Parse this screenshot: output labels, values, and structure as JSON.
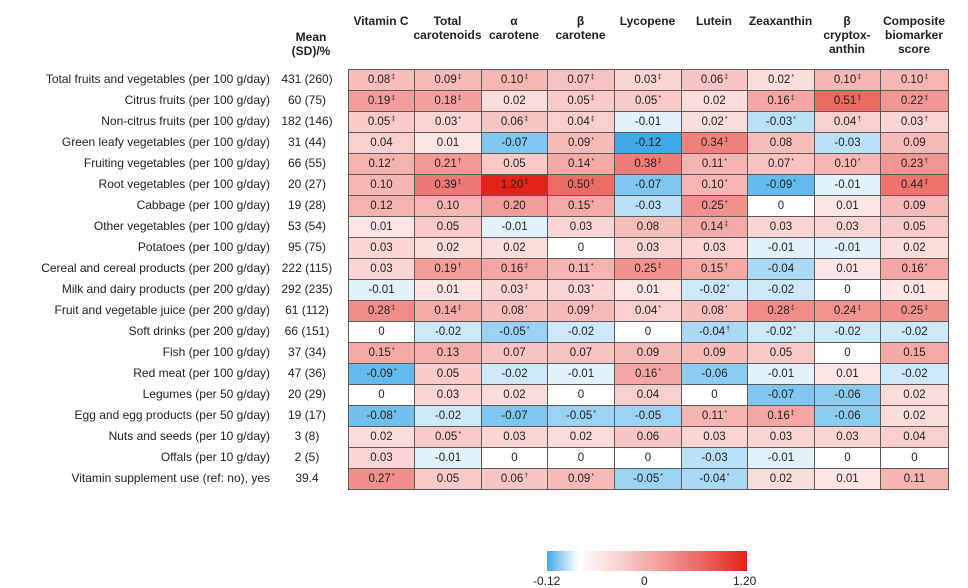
{
  "chart_data": {
    "type": "heatmap",
    "mean_header": [
      "Mean",
      "(SD)/%"
    ],
    "columns": [
      [
        "Vitamin C"
      ],
      [
        "Total",
        "carotenoids"
      ],
      [
        "α",
        "carotene"
      ],
      [
        "β",
        "carotene"
      ],
      [
        "Lycopene"
      ],
      [
        "Lutein"
      ],
      [
        "Zeaxanthin"
      ],
      [
        "β",
        "cryptox-",
        "anthin"
      ],
      [
        "Composite",
        "biomarker",
        "score"
      ]
    ],
    "rows": [
      {
        "label": "Total fruits and vegetables (per 100 g/day)",
        "mean": "431 (260)",
        "values": [
          0.08,
          0.09,
          0.1,
          0.07,
          0.03,
          0.06,
          0.02,
          0.1,
          0.1
        ],
        "marks": [
          "‡",
          "‡",
          "‡",
          "‡",
          "‡",
          "‡",
          "*",
          "‡",
          "‡"
        ]
      },
      {
        "label": "Citrus fruits (per 100 g/day)",
        "mean": "60 (75)",
        "values": [
          0.19,
          0.18,
          0.02,
          0.05,
          0.05,
          0.02,
          0.16,
          0.51,
          0.22
        ],
        "marks": [
          "‡",
          "‡",
          "",
          "‡",
          "*",
          "",
          "‡",
          "‡",
          "‡"
        ]
      },
      {
        "label": "Non-citrus fruits (per 100 g/day)",
        "mean": "182 (146)",
        "values": [
          0.05,
          0.03,
          0.06,
          0.04,
          -0.01,
          0.02,
          -0.03,
          0.04,
          0.03
        ],
        "marks": [
          "‡",
          "*",
          "‡",
          "‡",
          "",
          "*",
          "*",
          "†",
          "†"
        ]
      },
      {
        "label": "Green leafy vegetables (per 100 g/day)",
        "mean": "31 (44)",
        "values": [
          0.04,
          0.01,
          -0.07,
          0.09,
          -0.12,
          0.34,
          0.08,
          -0.03,
          0.09
        ],
        "marks": [
          "",
          "",
          "",
          "*",
          "",
          "‡",
          "",
          "",
          ""
        ]
      },
      {
        "label": "Fruiting vegetables (per 100 g/day)",
        "mean": "66 (55)",
        "values": [
          0.12,
          0.21,
          0.05,
          0.14,
          0.38,
          0.11,
          0.07,
          0.1,
          0.23
        ],
        "marks": [
          "*",
          "†",
          "",
          "*",
          "‡",
          "*",
          "*",
          "*",
          "†"
        ]
      },
      {
        "label": "Root vegetables (per 100 g/day)",
        "mean": "20 (27)",
        "values": [
          0.1,
          0.39,
          1.2,
          0.5,
          -0.07,
          0.1,
          -0.09,
          -0.01,
          0.44
        ],
        "marks": [
          "",
          "‡",
          "‡",
          "‡",
          "",
          "*",
          "*",
          "",
          "‡"
        ]
      },
      {
        "label": "Cabbage (per 100 g/day)",
        "mean": "19 (28)",
        "values": [
          0.12,
          0.1,
          0.2,
          0.15,
          -0.03,
          0.25,
          0,
          0.01,
          0.09
        ],
        "marks": [
          "",
          "",
          "",
          "*",
          "",
          "*",
          "",
          "",
          ""
        ]
      },
      {
        "label": "Other vegetables (per 100 g/day)",
        "mean": "53 (54)",
        "values": [
          0.01,
          0.05,
          -0.01,
          0.03,
          0.08,
          0.14,
          0.03,
          0.03,
          0.05
        ],
        "marks": [
          "",
          "",
          "",
          "",
          "",
          "‡",
          "",
          "",
          ""
        ]
      },
      {
        "label": "Potatoes (per 100 g/day)",
        "mean": "95 (75)",
        "values": [
          0.03,
          0.02,
          0.02,
          0,
          0.03,
          0.03,
          -0.01,
          -0.01,
          0.02
        ],
        "marks": [
          "",
          "",
          "",
          "",
          "",
          "",
          "",
          "",
          ""
        ]
      },
      {
        "label": "Cereal and cereal products (per 200 g/day)",
        "mean": "222 (115)",
        "values": [
          0.03,
          0.19,
          0.16,
          0.11,
          0.25,
          0.15,
          -0.04,
          0.01,
          0.16
        ],
        "marks": [
          "",
          "†",
          "‡",
          "*",
          "‡",
          "†",
          "",
          "",
          "*"
        ]
      },
      {
        "label": "Milk and dairy products (per 200 g/day)",
        "mean": "292 (235)",
        "values": [
          -0.01,
          0.01,
          0.03,
          0.03,
          0.01,
          -0.02,
          -0.02,
          0,
          0.01
        ],
        "marks": [
          "",
          "",
          "‡",
          "*",
          "",
          "*",
          "",
          "",
          ""
        ]
      },
      {
        "label": "Fruit and vegetable juice (per 200 g/day)",
        "mean": "61 (112)",
        "values": [
          0.28,
          0.14,
          0.08,
          0.09,
          0.04,
          0.08,
          0.28,
          0.24,
          0.25
        ],
        "marks": [
          "‡",
          "‡",
          "*",
          "†",
          "*",
          "*",
          "‡",
          "‡",
          "‡"
        ]
      },
      {
        "label": "Soft drinks (per 200 g/day)",
        "mean": "66 (151)",
        "values": [
          0,
          -0.02,
          -0.05,
          -0.02,
          0,
          -0.04,
          -0.02,
          -0.02,
          -0.02
        ],
        "marks": [
          "",
          "",
          "*",
          "",
          "",
          "†",
          "*",
          "",
          ""
        ]
      },
      {
        "label": "Fish (per 100 g/day)",
        "mean": "37 (34)",
        "values": [
          0.15,
          0.13,
          0.07,
          0.07,
          0.09,
          0.09,
          0.05,
          0,
          0.15
        ],
        "marks": [
          "*",
          "",
          "",
          "",
          "",
          "",
          "",
          "",
          ""
        ]
      },
      {
        "label": "Red meat (per 100 g/day)",
        "mean": "47 (36)",
        "values": [
          -0.09,
          0.05,
          -0.02,
          -0.01,
          0.16,
          -0.06,
          -0.01,
          0.01,
          -0.02
        ],
        "marks": [
          "*",
          "",
          "",
          "",
          "*",
          "",
          "",
          "",
          ""
        ]
      },
      {
        "label": "Legumes (per 50 g/day)",
        "mean": "20 (29)",
        "values": [
          0,
          0.03,
          0.02,
          0,
          0.04,
          0,
          -0.07,
          -0.06,
          0.02
        ],
        "marks": [
          "",
          "",
          "",
          "",
          "",
          "",
          "",
          "",
          ""
        ]
      },
      {
        "label": "Egg and egg products (per 50 g/day)",
        "mean": "19 (17)",
        "values": [
          -0.08,
          -0.02,
          -0.07,
          -0.05,
          -0.05,
          0.11,
          0.16,
          -0.06,
          0.02
        ],
        "marks": [
          "*",
          "",
          "",
          "*",
          "",
          "*",
          "‡",
          "",
          ""
        ]
      },
      {
        "label": "Nuts and seeds (per 10 g/day)",
        "mean": "3 (8)",
        "values": [
          0.02,
          0.05,
          0.03,
          0.02,
          0.06,
          0.03,
          0.03,
          0.03,
          0.04
        ],
        "marks": [
          "",
          "*",
          "",
          "",
          "",
          "",
          "",
          "",
          ""
        ]
      },
      {
        "label": "Offals (per 10 g/day)",
        "mean": "2 (5)",
        "values": [
          0.03,
          -0.01,
          0,
          0,
          0,
          -0.03,
          -0.01,
          0,
          0
        ],
        "marks": [
          "",
          "",
          "",
          "",
          "",
          "",
          "",
          "",
          ""
        ]
      },
      {
        "label": "Vitamin supplement use (ref: no), yes",
        "mean": "39.4",
        "values": [
          0.27,
          0.05,
          0.06,
          0.09,
          -0.05,
          -0.04,
          0.02,
          0.01,
          0.11
        ],
        "marks": [
          "*",
          "",
          "†",
          "*",
          "*",
          "*",
          "",
          "",
          ""
        ]
      }
    ],
    "color_scale": {
      "min": -0.12,
      "mid": 0,
      "max": 1.2,
      "min_label": "-0.12",
      "mid_label": "0",
      "max_label": "1.20",
      "neg_color": "#3fa9e8",
      "mid_color": "#ffffff",
      "pos_color": "#e2231a"
    }
  }
}
